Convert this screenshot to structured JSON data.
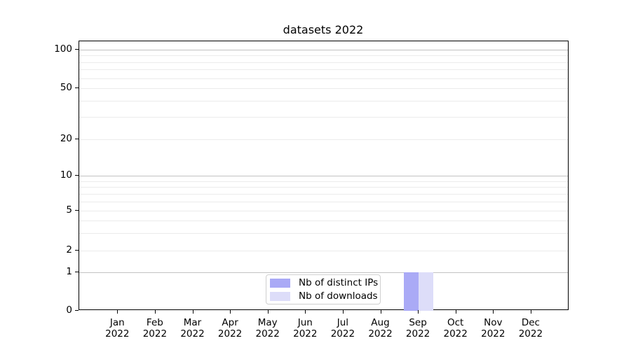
{
  "title": "datasets 2022",
  "chart_data": {
    "type": "bar",
    "title": "datasets 2022",
    "x_axis": {
      "months": [
        "Jan",
        "Feb",
        "Mar",
        "Apr",
        "May",
        "Jun",
        "Jul",
        "Aug",
        "Sep",
        "Oct",
        "Nov",
        "Dec"
      ],
      "year": "2022"
    },
    "y_axis": {
      "scale": "symlog",
      "ticks": [
        100,
        50,
        20,
        10,
        5,
        2,
        1,
        0
      ],
      "major_gridlines": [
        100,
        10,
        1
      ],
      "minor_gridlines": [
        90,
        80,
        70,
        60,
        50,
        40,
        30,
        20,
        9,
        8,
        7,
        6,
        5,
        4,
        3,
        2
      ],
      "range": [
        0,
        120
      ],
      "grid": true
    },
    "series": [
      {
        "name": "Nb of distinct IPs",
        "color": "#aaaaf6",
        "values": [
          0,
          0,
          0,
          0,
          0,
          0,
          0,
          0,
          1,
          0,
          0,
          0
        ]
      },
      {
        "name": "Nb of downloads",
        "color": "#ddddf9",
        "values": [
          0,
          0,
          0,
          0,
          0,
          0,
          0,
          0,
          1,
          0,
          0,
          0
        ]
      }
    ],
    "legend": {
      "position": "lower center (inside plot)",
      "labels": [
        "Nb of distinct IPs",
        "Nb of downloads"
      ]
    }
  },
  "colors": {
    "series_distinct_ips": "#aaaaf6",
    "series_downloads": "#ddddf9",
    "major_grid": "#c2c2c2",
    "minor_grid": "#ebebeb",
    "spine": "#000000",
    "text": "#000000",
    "background": "#ffffff"
  }
}
